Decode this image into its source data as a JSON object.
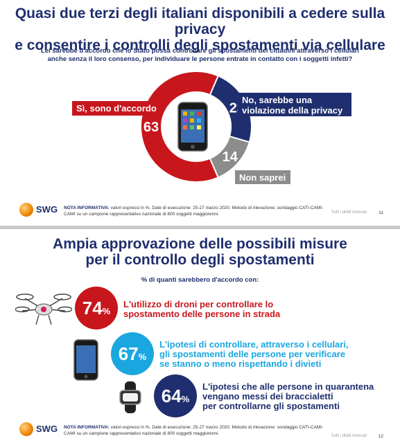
{
  "slide1": {
    "title_line1": "Quasi due terzi degli italiani disponibili a cedere sulla privacy",
    "title_line2": "e consentire i controlli degli spostamenti via cellulare",
    "question_line1": "Lei sarebbe d'accordo che lo Stato possa controllare gli spostamenti dei cittadini attraverso i cellulari",
    "question_line2": "anche senza il loro consenso, per individuare le persone entrate in contatto con i soggetti infetti?",
    "footnote_label": "NOTA INFORMATIVA:",
    "footnote_line1": "valori espressi in %. Date di esecuzione: 25-27 marzo 2020. Metodo di rilevazione: sondaggio CATI-CAMI-",
    "footnote_line2": "CAWI su un campione rappresentativo nazionale di 800 soggetti maggiorenni.",
    "rights": "Tutti i diritti riservati",
    "page_number": "11",
    "logo_text": "SWG"
  },
  "slide2": {
    "title_line1": "Ampia approvazione delle possibili misure",
    "title_line2": "per il controllo degli spostamenti",
    "subtitle": "% di quanti sarebbero d'accordo con:",
    "footnote_label": "NOTA INFORMATIVA:",
    "footnote_line1": "valori espressi in %. Date di esecuzione: 25-27 marzo 2020. Metodo di rilevazione: sondaggio CATI-CAMI-",
    "footnote_line2": "CAWI su un campione rappresentativo nazionale di 800 soggetti maggiorenni.",
    "rights": "Tutti i diritti riservati",
    "page_number": "12",
    "logo_text": "SWG"
  },
  "colors": {
    "red": "#c8161d",
    "navy": "#1f2e6e",
    "gray": "#8c8c8c",
    "cyan": "#1aa7e0"
  },
  "chart_data": [
    {
      "type": "pie",
      "donut": true,
      "series": [
        {
          "name": "Sì, sono d'accordo",
          "value": 63,
          "label": "63",
          "color": "#c8161d"
        },
        {
          "name": "No, sarebbe una violazione della privacy",
          "value": 23,
          "label": "23",
          "color": "#1f2e6e"
        },
        {
          "name": "Non saprei",
          "value": 14,
          "label": "14",
          "color": "#8c8c8c"
        }
      ],
      "label_yes_line1": "Sì, sono d'accordo",
      "label_no_line1": "No, sarebbe una",
      "label_no_line2": "violazione della privacy",
      "label_dk_line1": "Non saprei"
    },
    {
      "type": "table",
      "items": [
        {
          "value": 74,
          "number": "74",
          "percent": "%",
          "text_line1": "L'utilizzo di droni per controllare lo",
          "text_line2": "spostamento delle persone in strada",
          "text_line3": "",
          "color": "#c8161d",
          "icon": "drone-icon"
        },
        {
          "value": 67,
          "number": "67",
          "percent": "%",
          "text_line1": "L'ipotesi di controllare, attraverso i cellulari,",
          "text_line2": "gli spostamenti delle persone per verificare",
          "text_line3": "se stanno o meno rispettando i divieti",
          "color": "#1aa7e0",
          "icon": "smartphone-icon"
        },
        {
          "value": 64,
          "number": "64",
          "percent": "%",
          "text_line1": "L'ipotesi che alle persone in quarantena",
          "text_line2": "vengano messi dei braccialetti",
          "text_line3": "per controllarne gli spostamenti",
          "color": "#1f2e6e",
          "icon": "bracelet-icon"
        }
      ]
    }
  ]
}
